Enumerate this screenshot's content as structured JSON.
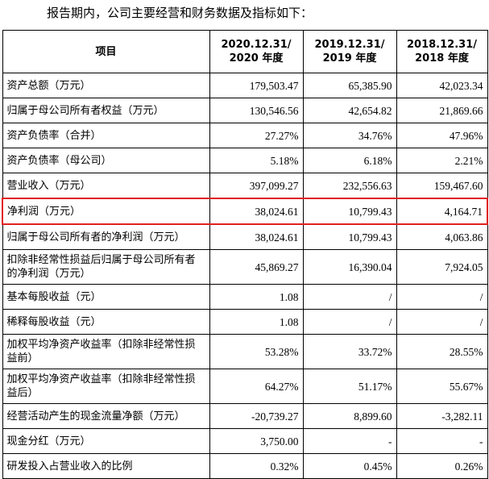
{
  "intro": "报告期内，公司主要经营和财务数据及指标如下：",
  "headers": [
    "项目",
    "2020.12.31/\n2020 年度",
    "2019.12.31/\n2019 年度",
    "2018.12.31/\n2018 年度"
  ],
  "rows": [
    {
      "label": "资产总额（万元）",
      "values": [
        "179,503.47",
        "65,385.90",
        "42,023.34"
      ],
      "tall": false
    },
    {
      "label": "归属于母公司所有者权益（万元）",
      "values": [
        "130,546.56",
        "42,654.82",
        "21,869.66"
      ],
      "tall": false
    },
    {
      "label": "资产负债率（合并）",
      "values": [
        "27.27%",
        "34.76%",
        "47.96%"
      ],
      "tall": false
    },
    {
      "label": "资产负债率（母公司）",
      "values": [
        "5.18%",
        "6.18%",
        "2.21%"
      ],
      "tall": false
    },
    {
      "label": "营业收入（万元）",
      "values": [
        "397,099.27",
        "232,556.63",
        "159,467.60"
      ],
      "tall": false
    },
    {
      "label": "净利润（万元）",
      "values": [
        "38,024.61",
        "10,799.43",
        "4,164.71"
      ],
      "tall": false,
      "highlight": true
    },
    {
      "label": "归属于母公司所有者的净利润（万元）",
      "values": [
        "38,024.61",
        "10,799.43",
        "4,063.86"
      ],
      "tall": false
    },
    {
      "label": "扣除非经常性损益后归属于母公司所有者的净利润（万元）",
      "values": [
        "45,869.27",
        "16,390.04",
        "7,924.05"
      ],
      "tall": true
    },
    {
      "label": "基本每股收益（元）",
      "values": [
        "1.08",
        "/",
        "/"
      ],
      "tall": false
    },
    {
      "label": "稀释每股收益（元）",
      "values": [
        "1.08",
        "/",
        "/"
      ],
      "tall": false
    },
    {
      "label": "加权平均净资产收益率（扣除非经常性损益前）",
      "values": [
        "53.28%",
        "33.72%",
        "28.55%"
      ],
      "tall": true
    },
    {
      "label": "加权平均净资产收益率（扣除非经常性损益后）",
      "values": [
        "64.27%",
        "51.17%",
        "55.67%"
      ],
      "tall": true
    },
    {
      "label": "经营活动产生的现金流量净额（万元）",
      "values": [
        "-20,739.27",
        "8,899.60",
        "-3,282.11"
      ],
      "tall": false
    },
    {
      "label": "现金分红（万元）",
      "values": [
        "3,750.00",
        "-",
        "-"
      ],
      "tall": false
    },
    {
      "label": "研发投入占营业收入的比例",
      "values": [
        "0.32%",
        "0.45%",
        "0.26%"
      ],
      "tall": false
    }
  ],
  "highlight_color": "#e02020"
}
